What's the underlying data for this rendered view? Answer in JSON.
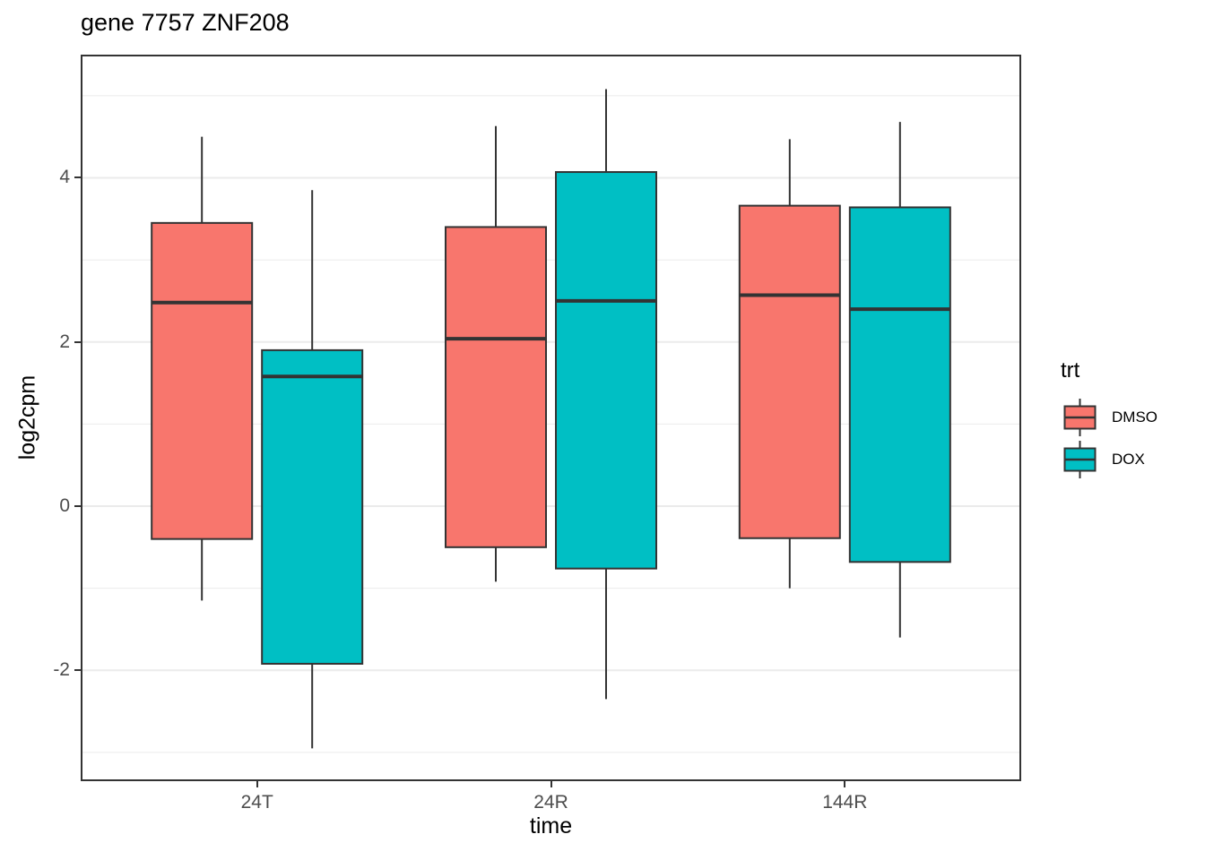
{
  "title": "gene 7757 ZNF208",
  "y_axis": {
    "label": "log2cpm",
    "tick_labels": [
      "4",
      "2",
      "0",
      "-2"
    ]
  },
  "x_axis": {
    "label": "time",
    "tick_labels": [
      "24T",
      "24R",
      "144R"
    ]
  },
  "legend": {
    "title": "trt",
    "entries": [
      {
        "label": "DMSO",
        "color": "#F8766D"
      },
      {
        "label": "DOX",
        "color": "#00BFC4"
      }
    ]
  },
  "colors": {
    "dmso": "#F8766D",
    "dox": "#00BFC4",
    "box_stroke": "#333333",
    "grid_major": "#EBEBEB",
    "grid_minor": "#EBEBEB",
    "panel_border": "#333333",
    "axis_text": "#4D4D4D",
    "tick_mark": "#333333"
  },
  "chart_data": {
    "type": "boxplot",
    "title": "gene 7757 ZNF208",
    "xlabel": "time",
    "ylabel": "log2cpm",
    "categories": [
      "24T",
      "24R",
      "144R"
    ],
    "ylim": [
      -3.35,
      5.5
    ],
    "yticks_major": [
      4,
      2,
      0,
      -2
    ],
    "yticks_minor": [
      5,
      3,
      1,
      -1,
      -3
    ],
    "grid": true,
    "legend_position": "right",
    "legend_title": "trt",
    "series": [
      {
        "name": "DMSO",
        "color": "#F8766D",
        "boxes": [
          {
            "category": "24T",
            "whisker_low": -1.15,
            "q1": -0.4,
            "median": 2.48,
            "q3": 3.45,
            "whisker_high": 4.5
          },
          {
            "category": "24R",
            "whisker_low": -0.92,
            "q1": -0.5,
            "median": 2.04,
            "q3": 3.4,
            "whisker_high": 4.63
          },
          {
            "category": "144R",
            "whisker_low": -1.0,
            "q1": -0.39,
            "median": 2.57,
            "q3": 3.66,
            "whisker_high": 4.47
          }
        ]
      },
      {
        "name": "DOX",
        "color": "#00BFC4",
        "boxes": [
          {
            "category": "24T",
            "whisker_low": -2.95,
            "q1": -1.92,
            "median": 1.58,
            "q3": 1.9,
            "whisker_high": 3.85
          },
          {
            "category": "24R",
            "whisker_low": -2.35,
            "q1": -0.76,
            "median": 2.5,
            "q3": 4.07,
            "whisker_high": 5.08
          },
          {
            "category": "144R",
            "whisker_low": -1.6,
            "q1": -0.68,
            "median": 2.4,
            "q3": 3.64,
            "whisker_high": 4.68
          }
        ]
      }
    ]
  }
}
